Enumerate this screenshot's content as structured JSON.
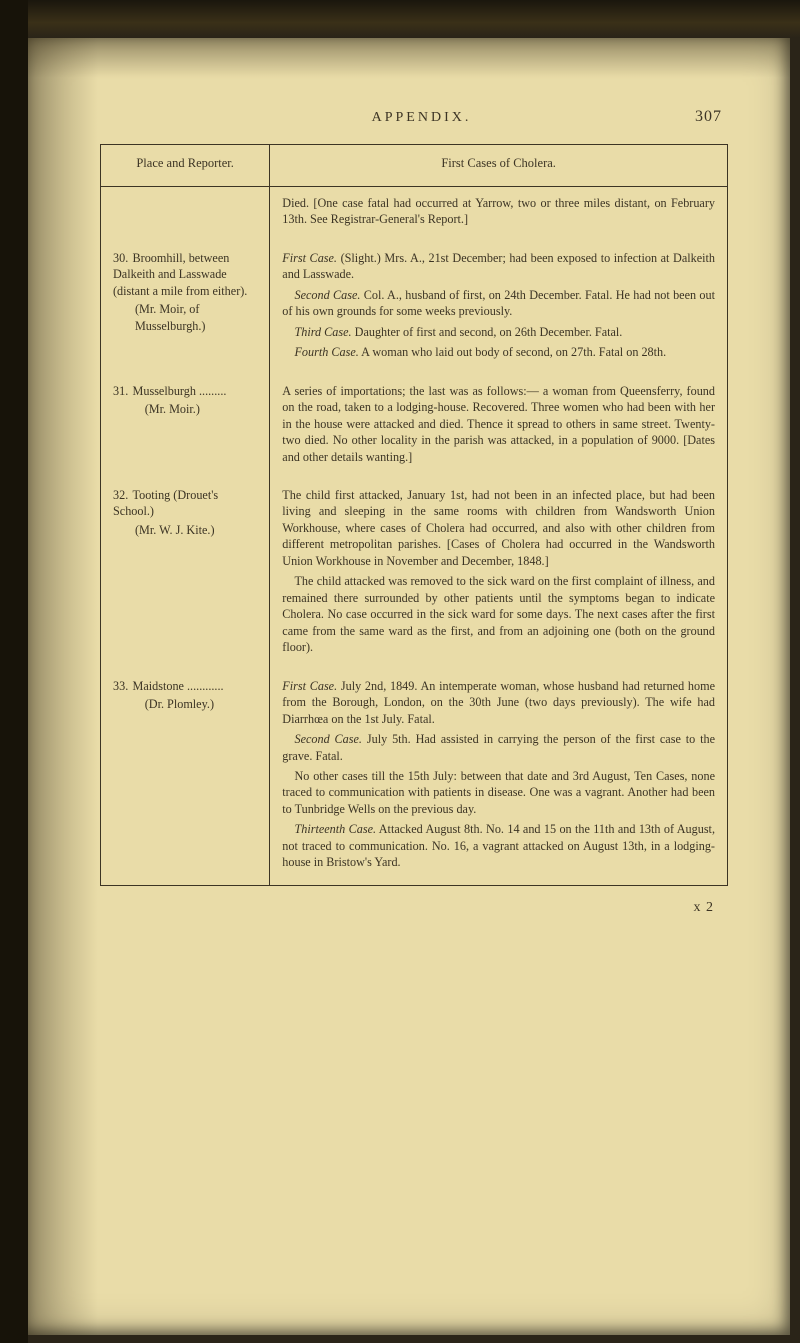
{
  "running_head": {
    "title": "APPENDIX.",
    "page_number": "307"
  },
  "signature": "x 2",
  "colors": {
    "paper": "#e9dca8",
    "ink": "#3c3424",
    "scan_bg": "#2a2418"
  },
  "table": {
    "columns": [
      "Place and Reporter.",
      "First Cases of Cholera."
    ],
    "column_widths_pct": [
      27,
      73
    ],
    "border_color": "#3c3424",
    "font_size_pt": 9,
    "rows": [
      {
        "left": {},
        "right": [
          "Died. [One case fatal had occurred at Yarrow, two or three miles distant, on February 13th. See Registrar-General's Report.]"
        ]
      },
      {
        "left": {
          "num": "30.",
          "lines": [
            "Broomhill, between Dalkeith and Lasswade (distant a mile from either).",
            "(Mr. Moir, of Musselburgh.)",
            ""
          ]
        },
        "right": [
          {
            "label": "First Case.",
            "text": "(Slight.) Mrs. A., 21st December; had been exposed to infection at Dalkeith and Lasswade."
          },
          {
            "label": "Second Case.",
            "text": "Col. A., husband of first, on 24th December. Fatal. He had not been out of his own grounds for some weeks previously."
          },
          {
            "label": "Third Case.",
            "text": "Daughter of first and second, on 26th December. Fatal."
          },
          {
            "label": "Fourth Case.",
            "text": "A woman who laid out body of second, on 27th. Fatal on 28th."
          }
        ]
      },
      {
        "left": {
          "num": "31.",
          "lines": [
            "Musselburgh .........",
            "(Mr. Moir.)"
          ]
        },
        "right": [
          "A series of importations; the last was as follows:— a woman from Queensferry, found on the road, taken to a lodging-house. Recovered. Three women who had been with her in the house were attacked and died. Thence it spread to others in same street. Twenty-two died. No other locality in the parish was attacked, in a population of 9000. [Dates and other details wanting.]"
        ]
      },
      {
        "left": {
          "num": "32.",
          "lines": [
            "Tooting (Drouet's School.)",
            "(Mr. W. J. Kite.)"
          ]
        },
        "right": [
          "The child first attacked, January 1st, had not been in an infected place, but had been living and sleeping in the same rooms with children from Wandsworth Union Workhouse, where cases of Cholera had occurred, and also with other children from different metropolitan parishes. [Cases of Cholera had occurred in the Wandsworth Union Workhouse in November and December, 1848.]",
          "The child attacked was removed to the sick ward on the first complaint of illness, and remained there surrounded by other patients until the symptoms began to indicate Cholera. No case occurred in the sick ward for some days. The next cases after the first came from the same ward as the first, and from an adjoining one (both on the ground floor)."
        ]
      },
      {
        "left": {
          "num": "33.",
          "lines": [
            "Maidstone ............",
            "(Dr. Plomley.)"
          ]
        },
        "right": [
          {
            "label": "First Case.",
            "text": "July 2nd, 1849. An intemperate woman, whose husband had returned home from the Borough, London, on the 30th June (two days previously). The wife had Diarrhœa on the 1st July. Fatal."
          },
          {
            "label": "Second Case.",
            "text": "July 5th. Had assisted in carrying the person of the first case to the grave. Fatal."
          },
          "No other cases till the 15th July: between that date and 3rd August, Ten Cases, none traced to communication with patients in disease. One was a vagrant. Another had been to Tunbridge Wells on the previous day.",
          {
            "label": "Thirteenth Case.",
            "text": "Attacked August 8th. No. 14 and 15 on the 11th and 13th of August, not traced to communication. No. 16, a vagrant attacked on August 13th, in a lodging-house in Bristow's Yard."
          }
        ]
      }
    ]
  }
}
